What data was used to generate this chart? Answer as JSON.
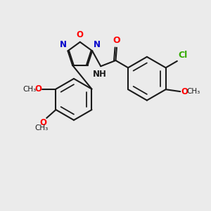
{
  "fig_bg": "#ebebeb",
  "bond_color": "#1a1a1a",
  "bond_width": 1.5,
  "atom_colors": {
    "N": "#0000cc",
    "O": "#ff0000",
    "Cl": "#33aa00",
    "C": "#1a1a1a"
  },
  "font_size": 8.5,
  "xlim": [
    0,
    10
  ],
  "ylim": [
    0,
    10
  ]
}
